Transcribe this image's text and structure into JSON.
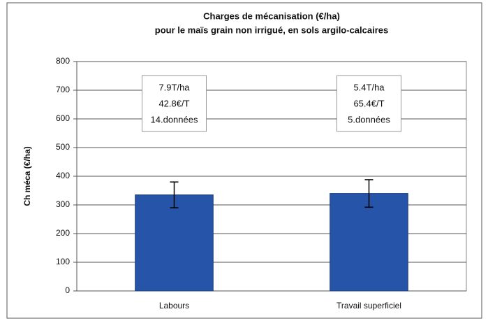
{
  "chart_data": {
    "type": "bar",
    "title": [
      "Charges de mécanisation (€/ha)",
      "pour le maïs grain non irrigué, en sols argilo-calcaires"
    ],
    "y_label": "Ch méca (€/ha)",
    "categories": [
      "Labours",
      "Travail superficiel"
    ],
    "values": [
      335,
      340
    ],
    "errors": [
      45,
      48
    ],
    "color": "#2554a8",
    "annotations": [
      [
        "7.9T/ha",
        "42.8€/T",
        "14.données"
      ],
      [
        "5.4T/ha",
        "65.4€/T",
        "5.données"
      ]
    ],
    "ylim": [
      0,
      800
    ],
    "yticks": [
      0,
      100,
      200,
      300,
      400,
      500,
      600,
      700,
      800
    ],
    "grid": true
  }
}
